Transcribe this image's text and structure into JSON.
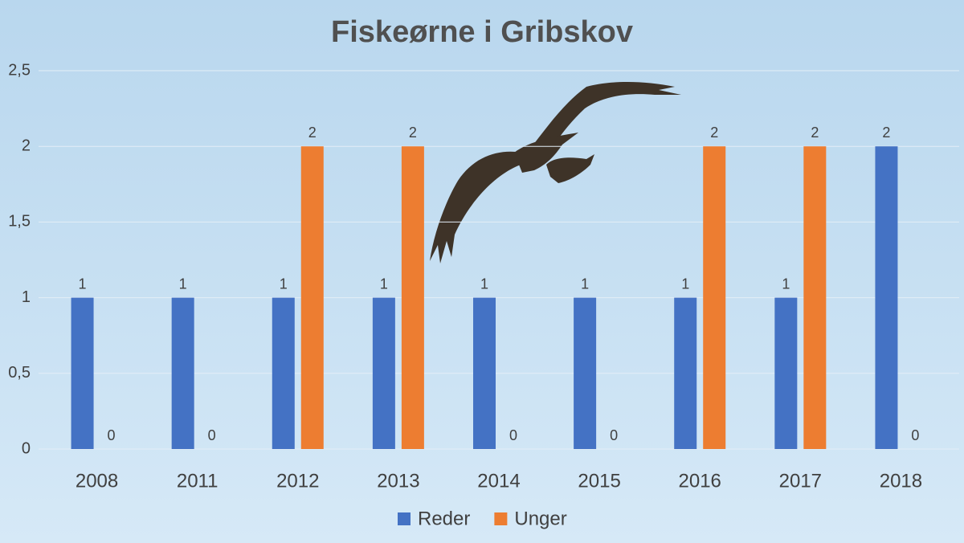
{
  "chart_data": {
    "type": "bar",
    "title": "Fiskeørne i Gribskov",
    "categories": [
      "2008",
      "2011",
      "2012",
      "2013",
      "2014",
      "2015",
      "2016",
      "2017",
      "2018"
    ],
    "series": [
      {
        "name": "Reder",
        "color": "#4472c4",
        "values": [
          1,
          1,
          1,
          1,
          1,
          1,
          1,
          1,
          2
        ]
      },
      {
        "name": "Unger",
        "color": "#ed7d31",
        "values": [
          0,
          0,
          2,
          2,
          0,
          0,
          2,
          2,
          0
        ]
      }
    ],
    "ylim": [
      0,
      2.5
    ],
    "yticks": [
      0,
      {
        "value": 0.5,
        "label": "0,5"
      },
      1,
      {
        "value": 1.5,
        "label": "1,5"
      },
      2,
      {
        "value": 2.5,
        "label": "2,5"
      }
    ],
    "grid": true,
    "legend": "bottom"
  }
}
